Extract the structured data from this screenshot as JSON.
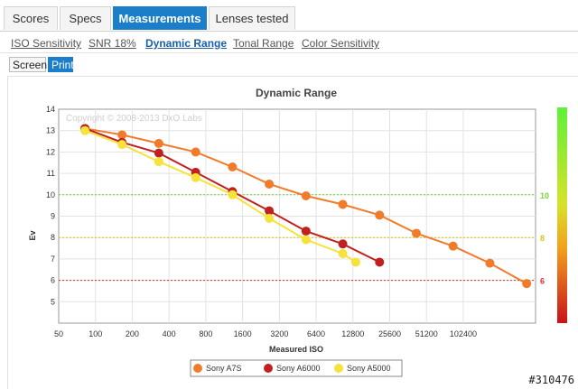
{
  "tabs": [
    {
      "label": "Scores",
      "active": false
    },
    {
      "label": "Specs",
      "active": false
    },
    {
      "label": "Measurements",
      "active": true
    },
    {
      "label": "Lenses tested",
      "active": false
    }
  ],
  "subnav": [
    {
      "label": "ISO Sensitivity",
      "active": false
    },
    {
      "label": "SNR 18%",
      "active": false
    },
    {
      "label": "Dynamic Range",
      "active": true
    },
    {
      "label": "Tonal Range",
      "active": false
    },
    {
      "label": "Color Sensitivity",
      "active": false
    }
  ],
  "view_toggle": [
    {
      "label": "Screen",
      "active": false
    },
    {
      "label": "Print",
      "active": true
    }
  ],
  "corner_id": "#310476",
  "colors": {
    "tab_active": "#1a7ecb",
    "link_active": "#1a5fa8"
  },
  "chart_data": {
    "type": "line",
    "title": "Dynamic Range",
    "xlabel": "Measured ISO",
    "ylabel": "Ev",
    "watermark": "Copyright © 2008-2013 DxO Labs",
    "x_scale": "log2",
    "xlim": [
      50,
      400000
    ],
    "ylim": [
      4,
      14
    ],
    "x_ticks": [
      50,
      100,
      200,
      400,
      800,
      1600,
      3200,
      6400,
      12800,
      25600,
      51200,
      102400
    ],
    "y_ticks": [
      5,
      6,
      7,
      8,
      9,
      10,
      11,
      12,
      13,
      14
    ],
    "grid": true,
    "reference_lines": [
      {
        "y": 10,
        "label": "10",
        "color": "#7dd33d"
      },
      {
        "y": 8,
        "label": "8",
        "color": "#d8c21a"
      },
      {
        "y": 6,
        "label": "6",
        "color": "#d9322b"
      }
    ],
    "legend_position": "bottom",
    "series": [
      {
        "name": "Sony A7S",
        "color": "#f07c2b",
        "x": [
          82,
          165,
          330,
          661,
          1322,
          2643,
          5286,
          10573,
          21145,
          42291,
          84582,
          169163,
          338326
        ],
        "y": [
          13.1,
          12.8,
          12.4,
          12.0,
          11.3,
          10.5,
          9.95,
          9.55,
          9.05,
          8.2,
          7.6,
          6.8,
          5.85
        ]
      },
      {
        "name": "Sony A6000",
        "color": "#c0211f",
        "x": [
          82,
          165,
          330,
          661,
          1322,
          2643,
          5286,
          10573,
          21145
        ],
        "y": [
          13.1,
          12.45,
          11.95,
          11.05,
          10.15,
          9.25,
          8.3,
          7.7,
          6.85
        ]
      },
      {
        "name": "Sony A5000",
        "color": "#f5e23a",
        "x": [
          82,
          165,
          330,
          661,
          1322,
          2643,
          5286,
          10573,
          13500
        ],
        "y": [
          13.0,
          12.35,
          11.55,
          10.8,
          10.0,
          8.9,
          7.9,
          7.25,
          6.85
        ]
      }
    ]
  }
}
